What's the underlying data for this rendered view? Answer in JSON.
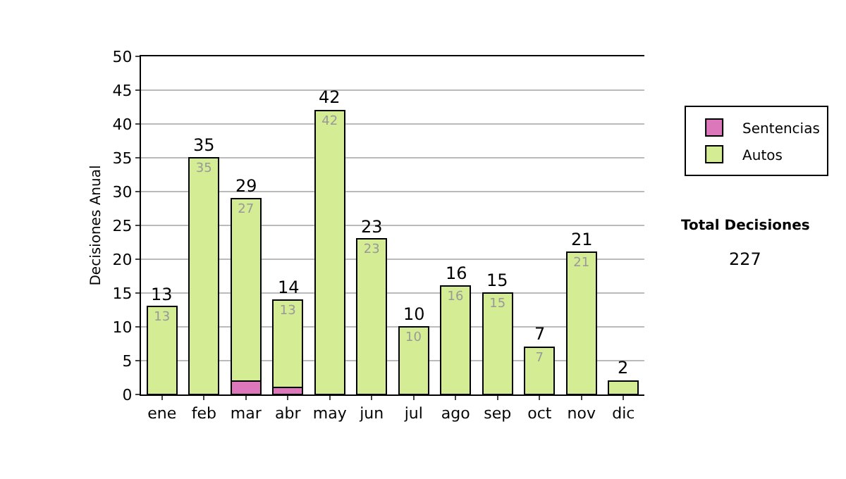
{
  "chart_data": {
    "type": "bar",
    "stacked": true,
    "ylabel": "Decisiones Anual",
    "categories": [
      "ene",
      "feb",
      "mar",
      "abr",
      "may",
      "jun",
      "jul",
      "ago",
      "sep",
      "oct",
      "nov",
      "dic"
    ],
    "series": [
      {
        "name": "Sentencias",
        "color": "#dd77bb",
        "values": [
          0,
          0,
          2,
          1,
          0,
          0,
          0,
          0,
          0,
          0,
          0,
          0
        ]
      },
      {
        "name": "Autos",
        "color": "#d4ec94",
        "values": [
          13,
          35,
          27,
          13,
          42,
          23,
          10,
          16,
          15,
          7,
          21,
          2
        ],
        "value_labels": [
          "13",
          "35",
          "27",
          "13",
          "42",
          "23",
          "10",
          "16",
          "15",
          "7",
          "21",
          null
        ]
      }
    ],
    "totals": [
      "13",
      "35",
      "29",
      "14",
      "42",
      "23",
      "10",
      "16",
      "15",
      "7",
      "21",
      "2"
    ],
    "ylim": [
      0,
      50
    ],
    "yticks": [
      0,
      5,
      10,
      15,
      20,
      25,
      30,
      35,
      40,
      45,
      50
    ],
    "grid": "y",
    "legend": "right",
    "annotations": [
      "Total Decisiones",
      "227"
    ]
  }
}
